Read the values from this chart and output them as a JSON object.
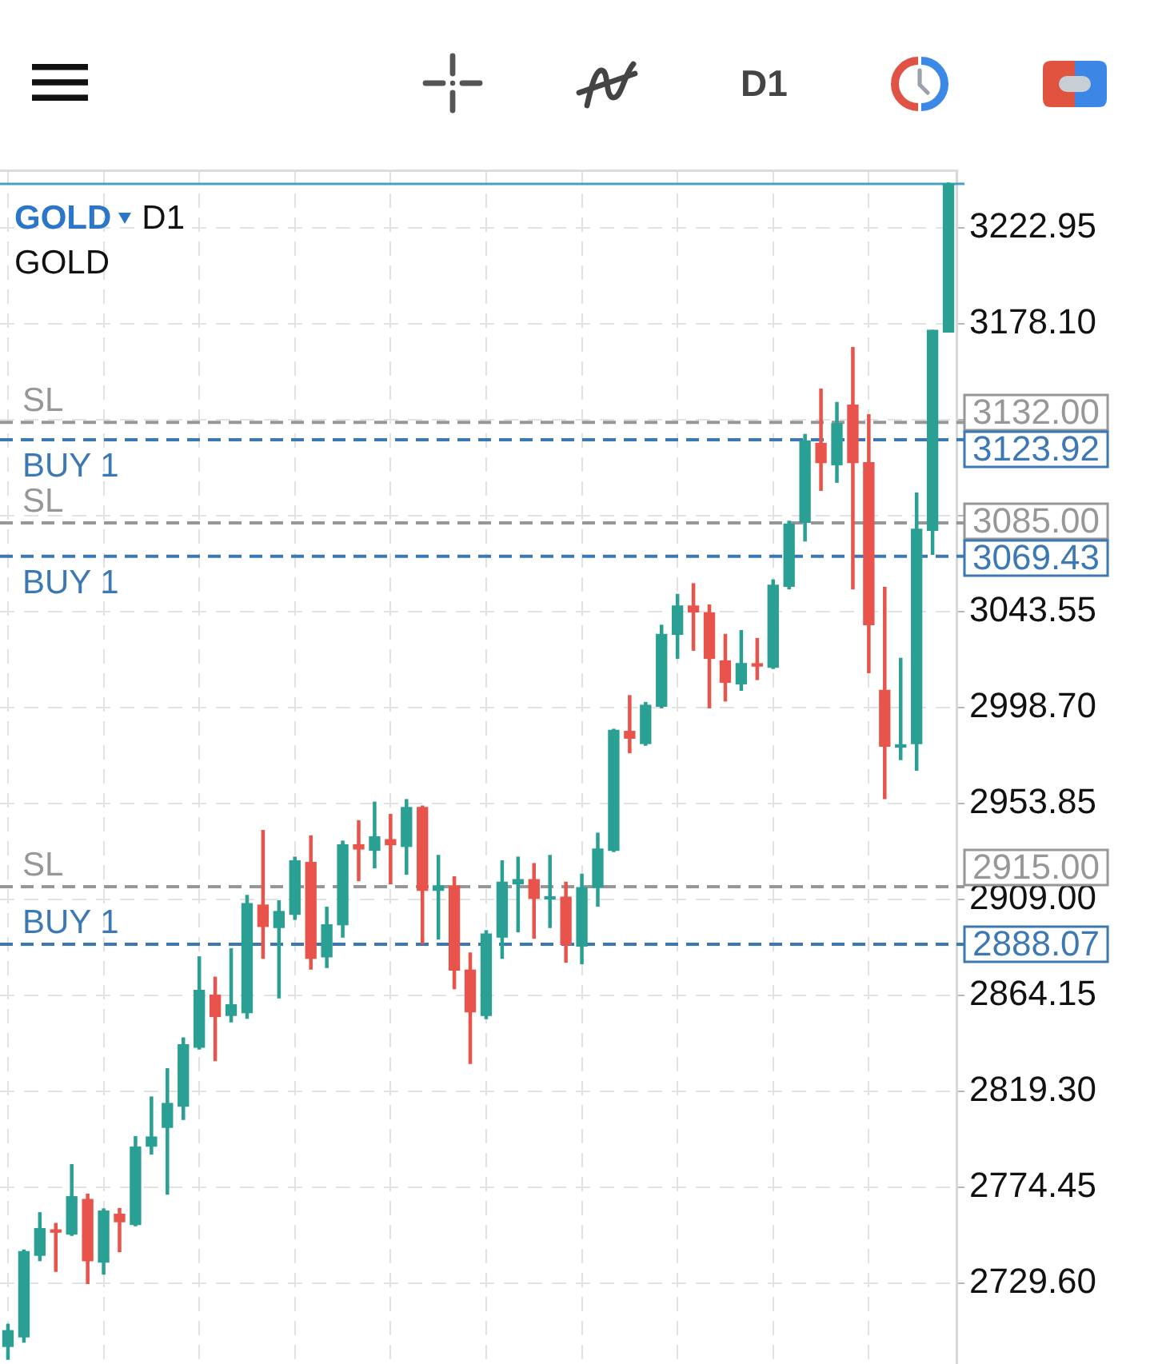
{
  "chart_data": {
    "type": "candlestick",
    "title": "GOLD",
    "subtitle": "GOLD",
    "annotations": [
      "D1",
      "D1",
      "3132.00",
      "3123.92",
      "3085.00",
      "3069.43",
      "2915.00",
      "2888.07"
    ],
    "categories": [
      null,
      null,
      null,
      null,
      null,
      null,
      null,
      null,
      null,
      null,
      null,
      null,
      null,
      null,
      null,
      null,
      null,
      null,
      null,
      null,
      null,
      null,
      null,
      null,
      null,
      null,
      null,
      null,
      null,
      null,
      null,
      null,
      null,
      null,
      null,
      null,
      null,
      null,
      null,
      null,
      null,
      null,
      null,
      null,
      null,
      null,
      null,
      null,
      null,
      null,
      null,
      null,
      null,
      null,
      null,
      null,
      null,
      null,
      null,
      null
    ],
    "ohlc": [
      [
        2700.1,
        2710.5,
        2694.1,
        2707.5
      ],
      [
        2704.6,
        2745.2,
        2702.1,
        2744.4
      ],
      [
        2742.7,
        2762.6,
        2740.2,
        2755.2
      ],
      [
        2754.3,
        2757.6,
        2735.2,
        2753.5
      ],
      [
        2752.6,
        2785.1,
        2752.0,
        2770.1
      ],
      [
        2768.8,
        2771.3,
        2729.5,
        2740.2
      ],
      [
        2739.5,
        2764.4,
        2733.9,
        2763.4
      ],
      [
        2761.9,
        2764.6,
        2744.4,
        2758.4
      ],
      [
        2757.1,
        2798.2,
        2756.5,
        2793.3
      ],
      [
        2793.7,
        2816.7,
        2790.0,
        2798.0
      ],
      [
        2802.5,
        2829.9,
        2771.3,
        2813.7
      ],
      [
        2812.4,
        2844.3,
        2806.2,
        2841.1
      ],
      [
        2839.9,
        2882.2,
        2839.1,
        2866.5
      ],
      [
        2864.3,
        2872.7,
        2833.7,
        2854.3
      ],
      [
        2854.8,
        2886.0,
        2851.8,
        2859.8
      ],
      [
        2856.1,
        2910.9,
        2853.5,
        2907.1
      ],
      [
        2906.4,
        2941.3,
        2881.5,
        2896.4
      ],
      [
        2895.9,
        2908.4,
        2863.0,
        2903.4
      ],
      [
        2902.1,
        2928.8,
        2899.7,
        2927.1
      ],
      [
        2926.3,
        2938.8,
        2876.5,
        2881.5
      ],
      [
        2882.2,
        2905.4,
        2877.2,
        2897.2
      ],
      [
        2897.2,
        2936.3,
        2891.4,
        2934.6
      ],
      [
        2934.6,
        2945.8,
        2917.8,
        2932.6
      ],
      [
        2932.0,
        2954.5,
        2923.8,
        2938.3
      ],
      [
        2937.0,
        2948.8,
        2916.3,
        2934.6
      ],
      [
        2933.8,
        2955.7,
        2920.8,
        2952.0
      ],
      [
        2952.0,
        2952.7,
        2888.4,
        2913.3
      ],
      [
        2913.3,
        2929.6,
        2890.5,
        2915.4
      ],
      [
        2915.4,
        2919.6,
        2867.3,
        2876.0
      ],
      [
        2876.0,
        2884.0,
        2832.4,
        2856.5
      ],
      [
        2854.8,
        2894.4,
        2853.3,
        2892.9
      ],
      [
        2891.4,
        2927.1,
        2881.5,
        2917.1
      ],
      [
        2916.3,
        2928.8,
        2893.9,
        2918.3
      ],
      [
        2918.3,
        2925.8,
        2890.9,
        2909.6
      ],
      [
        2909.2,
        2929.6,
        2895.9,
        2910.1
      ],
      [
        2910.1,
        2917.1,
        2879.7,
        2887.9
      ],
      [
        2887.2,
        2920.8,
        2879.0,
        2914.6
      ],
      [
        2914.6,
        2940.0,
        2905.9,
        2932.6
      ],
      [
        2932.0,
        2988.6,
        2931.4,
        2988.1
      ],
      [
        2987.6,
        3004.3,
        2977.6,
        2984.4
      ],
      [
        2981.9,
        3001.1,
        2981.1,
        2999.8
      ],
      [
        2999.3,
        3037.2,
        2998.6,
        3032.9
      ],
      [
        3032.9,
        3051.6,
        3021.7,
        3046.2
      ],
      [
        3046.2,
        3056.6,
        3025.5,
        3043.4
      ],
      [
        3043.0,
        3046.7,
        2998.6,
        3021.7
      ],
      [
        3020.5,
        3032.9,
        3001.8,
        3010.5
      ],
      [
        3009.8,
        3034.7,
        3006.8,
        3019.3
      ],
      [
        3018.9,
        3031.0,
        3011.8,
        3018.1
      ],
      [
        3017.5,
        3058.4,
        3017.0,
        3055.9
      ],
      [
        3055.4,
        3085.8,
        3054.2,
        3084.5
      ],
      [
        3085.3,
        3126.4,
        3076.6,
        3123.4
      ],
      [
        3122.2,
        3147.6,
        3100.2,
        3113.2
      ],
      [
        3112.2,
        3141.3,
        3104.0,
        3131.4
      ],
      [
        3140.1,
        3167.0,
        3054.2,
        3113.2
      ],
      [
        3113.2,
        3135.6,
        3015.0,
        3037.4
      ],
      [
        3006.8,
        3054.9,
        2956.2,
        2980.6
      ],
      [
        2980.2,
        3021.7,
        2974.4,
        2981.0
      ],
      [
        2981.9,
        3099.0,
        2969.4,
        3082.1
      ],
      [
        3081.5,
        3175.0,
        3070.3,
        3175.0
      ],
      [
        3174.2,
        3243.9,
        3174.2,
        3243.5
      ]
    ],
    "colors": [
      "#2aa094",
      "#2aa094",
      "#2aa094",
      "#e8544c",
      "#2aa094",
      "#e8544c",
      "#2aa094",
      "#e8544c",
      "#2aa094",
      "#2aa094",
      "#2aa094",
      "#2aa094",
      "#2aa094",
      "#e8544c",
      "#2aa094",
      "#2aa094",
      "#e8544c",
      "#2aa094",
      "#2aa094",
      "#e8544c",
      "#2aa094",
      "#2aa094",
      "#e8544c",
      "#2aa094",
      "#e8544c",
      "#2aa094",
      "#e8544c",
      "#2aa094",
      "#e8544c",
      "#e8544c",
      "#2aa094",
      "#2aa094",
      "#2aa094",
      "#e8544c",
      "#2aa094",
      "#e8544c",
      "#2aa094",
      "#2aa094",
      "#2aa094",
      "#e8544c",
      "#2aa094",
      "#2aa094",
      "#2aa094",
      "#e8544c",
      "#e8544c",
      "#e8544c",
      "#2aa094",
      "#e8544c",
      "#2aa094",
      "#2aa094",
      "#2aa094",
      "#e8544c",
      "#2aa094",
      "#e8544c",
      "#e8544c",
      "#e8544c",
      "#2aa094",
      "#2aa094",
      "#2aa094",
      "#2aa094"
    ],
    "ylim": [
      2691.9,
      3250.2
    ],
    "yticks": [
      3222.95,
      {
        "value": 3178.1,
        "label": "3178.10"
      },
      {
        "value": 3133.25,
        "label": null
      },
      {
        "value": 3088.4,
        "label": null
      },
      3043.55,
      {
        "value": 2998.7,
        "label": "2998.70"
      },
      2953.85,
      {
        "value": 2909.0,
        "label": "2909.00"
      },
      2864.15,
      {
        "value": 2819.3,
        "label": "2819.30"
      },
      2774.45,
      {
        "value": 2729.6,
        "label": "2729.60"
      }
    ],
    "ref_lines": [
      {
        "axis": "y",
        "value": 3132.0,
        "label": "SL",
        "color": "#979797",
        "line_style": "dashed"
      },
      {
        "axis": "y",
        "value": 3123.92,
        "label": "BUY 1",
        "color": "#3b78b4",
        "line_style": "dashed"
      },
      {
        "axis": "y",
        "value": 3085.0,
        "label": "SL",
        "color": "#979797",
        "line_style": "dashed"
      },
      {
        "axis": "y",
        "value": 3069.43,
        "label": "BUY 1",
        "color": "#3b78b4",
        "line_style": "dashed"
      },
      {
        "axis": "y",
        "value": 2915.0,
        "label": "SL",
        "color": "#979797",
        "line_style": "dashed"
      },
      {
        "axis": "y",
        "value": 2888.07,
        "label": "BUY 1",
        "color": "#3b78b4",
        "line_style": "dashed"
      },
      {
        "axis": "y",
        "value": 3243.5,
        "color": "#45a0c6",
        "line_style": "solid"
      }
    ],
    "grid": true,
    "tick_labels": "y"
  }
}
